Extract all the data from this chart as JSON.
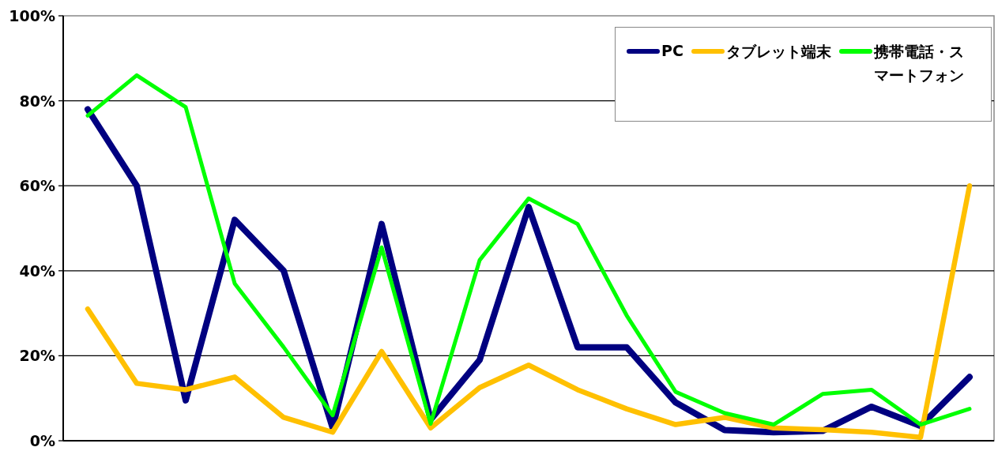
{
  "chart_data": {
    "type": "line",
    "categories": [
      null,
      null,
      null,
      null,
      null,
      null,
      null,
      null,
      null,
      null,
      null,
      null,
      null,
      null,
      null,
      null,
      null,
      null,
      null
    ],
    "series": [
      {
        "name": "PC",
        "color": "#000080",
        "values": [
          78,
          60,
          9.5,
          52,
          40,
          3,
          51,
          5,
          19,
          55,
          22,
          22,
          9,
          2.5,
          2,
          2.3,
          8,
          3.5,
          15
        ]
      },
      {
        "name": "タブレット端末",
        "color": "#ffc000",
        "values": [
          31,
          13.5,
          12,
          15,
          5.5,
          2,
          21,
          3,
          12.5,
          17.8,
          12,
          7.5,
          3.8,
          5.5,
          3,
          2.6,
          2,
          0.8,
          60
        ]
      },
      {
        "name": "携帯電話・スマートフォン",
        "color": "#00ff00",
        "values": [
          76.5,
          86,
          78.5,
          37,
          22,
          6,
          45.5,
          4,
          42.5,
          57,
          51,
          29.5,
          11.5,
          6.5,
          3.8,
          11,
          12,
          3.8,
          7.5
        ]
      }
    ],
    "ylim": [
      0,
      100
    ],
    "yticks": [
      {
        "value": 0,
        "label": "0%"
      },
      {
        "value": 20,
        "label": "20%"
      },
      {
        "value": 40,
        "label": "40%"
      },
      {
        "value": 60,
        "label": "60%"
      },
      {
        "value": 80,
        "label": "80%"
      },
      {
        "value": 100,
        "label": "100%"
      }
    ],
    "grid": "y",
    "legend": "top right",
    "line_style": "solid"
  }
}
